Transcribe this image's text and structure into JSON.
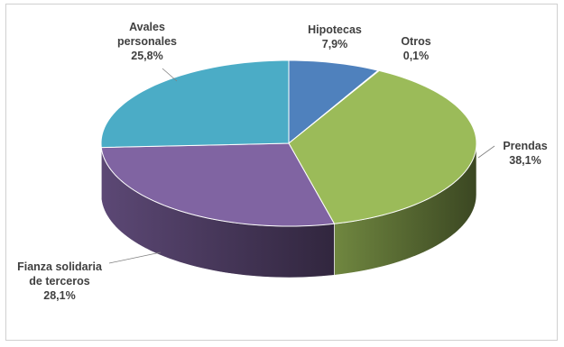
{
  "chart_data": {
    "type": "pie",
    "style": "3d",
    "slices": [
      {
        "label_lines": [
          "Hipotecas"
        ],
        "value_text": "7,9%",
        "value": 7.9,
        "color": "#4f81bd"
      },
      {
        "label_lines": [
          "Otros"
        ],
        "value_text": "0,1%",
        "value": 0.1,
        "color": "#f79646"
      },
      {
        "label_lines": [
          "Prendas"
        ],
        "value_text": "38,1%",
        "value": 38.1,
        "color": "#9bbb59"
      },
      {
        "label_lines": [
          "Fianza solidaria",
          "de terceros"
        ],
        "value_text": "28,1%",
        "value": 28.1,
        "color": "#8064a2"
      },
      {
        "label_lines": [
          "Avales",
          "personales"
        ],
        "value_text": "25,8%",
        "value": 25.8,
        "color": "#4bacc6"
      }
    ]
  }
}
